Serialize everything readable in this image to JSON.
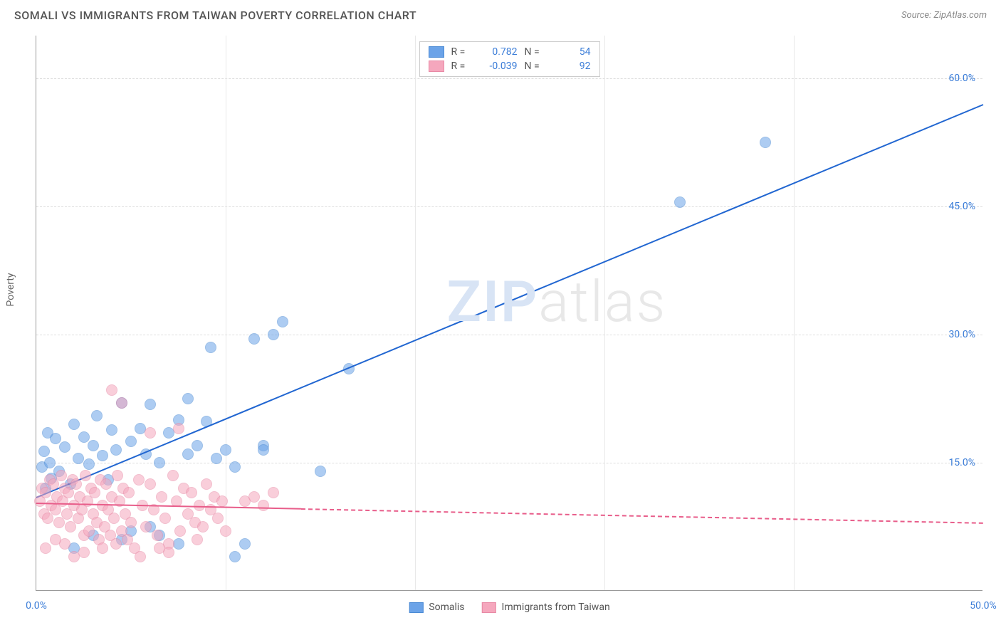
{
  "title": "SOMALI VS IMMIGRANTS FROM TAIWAN POVERTY CORRELATION CHART",
  "source_label": "Source:",
  "source_name": "ZipAtlas.com",
  "watermark_part1": "ZIP",
  "watermark_part2": "atlas",
  "y_axis_label": "Poverty",
  "chart": {
    "type": "scatter",
    "background_color": "#ffffff",
    "grid_color": "#dddddd",
    "axis_color": "#999999",
    "tick_label_color": "#3b7dd8",
    "tick_label_fontsize": 14,
    "title_fontsize": 16,
    "title_color": "#555555",
    "xlim": [
      0,
      50
    ],
    "ylim": [
      0,
      65
    ],
    "x_ticks": [
      0,
      50
    ],
    "x_tick_labels": [
      "0.0%",
      "50.0%"
    ],
    "y_ticks": [
      15,
      30,
      45,
      60
    ],
    "y_tick_labels": [
      "15.0%",
      "30.0%",
      "45.0%",
      "60.0%"
    ],
    "v_grid_positions": [
      10,
      20,
      30,
      40
    ],
    "marker_radius": 8,
    "marker_opacity": 0.55,
    "series": [
      {
        "name": "Somalis",
        "color": "#6ba3e8",
        "border_color": "#4a8ad4",
        "trend_color": "#2166d1",
        "r_value": "0.782",
        "n_value": "54",
        "trend": {
          "x1": 0,
          "y1": 11,
          "x2": 50,
          "y2": 57,
          "solid_until_x": 50
        },
        "points": [
          [
            0.3,
            14.5
          ],
          [
            0.4,
            16.3
          ],
          [
            0.5,
            12.0
          ],
          [
            0.6,
            18.5
          ],
          [
            0.7,
            15.0
          ],
          [
            0.8,
            13.2
          ],
          [
            1.0,
            17.8
          ],
          [
            1.2,
            14.0
          ],
          [
            1.5,
            16.8
          ],
          [
            1.8,
            12.5
          ],
          [
            2.0,
            19.5
          ],
          [
            2.2,
            15.5
          ],
          [
            2.5,
            18.0
          ],
          [
            2.8,
            14.8
          ],
          [
            3.0,
            17.0
          ],
          [
            3.2,
            20.5
          ],
          [
            3.5,
            15.8
          ],
          [
            3.8,
            13.0
          ],
          [
            4.0,
            18.8
          ],
          [
            4.2,
            16.5
          ],
          [
            4.5,
            22.0
          ],
          [
            5.0,
            17.5
          ],
          [
            5.5,
            19.0
          ],
          [
            5.8,
            16.0
          ],
          [
            6.0,
            21.8
          ],
          [
            6.5,
            15.0
          ],
          [
            7.0,
            18.5
          ],
          [
            7.5,
            20.0
          ],
          [
            8.0,
            22.5
          ],
          [
            8.5,
            17.0
          ],
          [
            9.0,
            19.8
          ],
          [
            9.2,
            28.5
          ],
          [
            5.0,
            7.0
          ],
          [
            6.5,
            6.5
          ],
          [
            10.5,
            4.0
          ],
          [
            10.0,
            16.5
          ],
          [
            10.5,
            14.5
          ],
          [
            11.0,
            5.5
          ],
          [
            11.5,
            29.5
          ],
          [
            12.0,
            17.0
          ],
          [
            12.5,
            30.0
          ],
          [
            13.0,
            31.5
          ],
          [
            15.0,
            14.0
          ],
          [
            16.5,
            26.0
          ],
          [
            12.0,
            16.5
          ],
          [
            4.5,
            6.0
          ],
          [
            7.5,
            5.5
          ],
          [
            34.0,
            45.5
          ],
          [
            38.5,
            52.5
          ],
          [
            8.0,
            16.0
          ],
          [
            9.5,
            15.5
          ],
          [
            3.0,
            6.5
          ],
          [
            6.0,
            7.5
          ],
          [
            2.0,
            5.0
          ]
        ]
      },
      {
        "name": "Immigrants from Taiwan",
        "color": "#f5a7bd",
        "border_color": "#e889a5",
        "trend_color": "#e85d8a",
        "r_value": "-0.039",
        "n_value": "92",
        "trend": {
          "x1": 0,
          "y1": 10.3,
          "x2": 50,
          "y2": 8.0,
          "solid_until_x": 14
        },
        "points": [
          [
            0.2,
            10.5
          ],
          [
            0.3,
            12.0
          ],
          [
            0.4,
            9.0
          ],
          [
            0.5,
            11.5
          ],
          [
            0.6,
            8.5
          ],
          [
            0.7,
            13.0
          ],
          [
            0.8,
            10.0
          ],
          [
            0.9,
            12.5
          ],
          [
            1.0,
            9.5
          ],
          [
            1.1,
            11.0
          ],
          [
            1.2,
            8.0
          ],
          [
            1.3,
            13.5
          ],
          [
            1.4,
            10.5
          ],
          [
            1.5,
            12.0
          ],
          [
            1.6,
            9.0
          ],
          [
            1.7,
            11.5
          ],
          [
            1.8,
            7.5
          ],
          [
            1.9,
            13.0
          ],
          [
            2.0,
            10.0
          ],
          [
            2.1,
            12.5
          ],
          [
            2.2,
            8.5
          ],
          [
            2.3,
            11.0
          ],
          [
            2.4,
            9.5
          ],
          [
            2.5,
            6.5
          ],
          [
            2.6,
            13.5
          ],
          [
            2.7,
            10.5
          ],
          [
            2.8,
            7.0
          ],
          [
            2.9,
            12.0
          ],
          [
            3.0,
            9.0
          ],
          [
            3.1,
            11.5
          ],
          [
            3.2,
            8.0
          ],
          [
            3.3,
            6.0
          ],
          [
            3.4,
            13.0
          ],
          [
            3.5,
            10.0
          ],
          [
            3.6,
            7.5
          ],
          [
            3.7,
            12.5
          ],
          [
            3.8,
            9.5
          ],
          [
            3.9,
            6.5
          ],
          [
            4.0,
            11.0
          ],
          [
            4.1,
            8.5
          ],
          [
            4.2,
            5.5
          ],
          [
            4.3,
            13.5
          ],
          [
            4.4,
            10.5
          ],
          [
            4.5,
            7.0
          ],
          [
            4.6,
            12.0
          ],
          [
            4.7,
            9.0
          ],
          [
            4.8,
            6.0
          ],
          [
            4.9,
            11.5
          ],
          [
            5.0,
            8.0
          ],
          [
            5.2,
            5.0
          ],
          [
            5.4,
            13.0
          ],
          [
            5.6,
            10.0
          ],
          [
            5.8,
            7.5
          ],
          [
            6.0,
            12.5
          ],
          [
            6.2,
            9.5
          ],
          [
            6.4,
            6.5
          ],
          [
            6.6,
            11.0
          ],
          [
            6.8,
            8.5
          ],
          [
            7.0,
            5.5
          ],
          [
            7.2,
            13.5
          ],
          [
            7.4,
            10.5
          ],
          [
            7.6,
            7.0
          ],
          [
            7.8,
            12.0
          ],
          [
            8.0,
            9.0
          ],
          [
            8.2,
            11.5
          ],
          [
            8.4,
            8.0
          ],
          [
            8.6,
            10.0
          ],
          [
            8.8,
            7.5
          ],
          [
            9.0,
            12.5
          ],
          [
            9.2,
            9.5
          ],
          [
            9.4,
            11.0
          ],
          [
            9.6,
            8.5
          ],
          [
            9.8,
            10.5
          ],
          [
            10.0,
            7.0
          ],
          [
            4.0,
            23.5
          ],
          [
            4.5,
            22.0
          ],
          [
            7.5,
            19.0
          ],
          [
            6.0,
            18.5
          ],
          [
            2.5,
            4.5
          ],
          [
            3.5,
            5.0
          ],
          [
            5.5,
            4.0
          ],
          [
            7.0,
            4.5
          ],
          [
            1.5,
            5.5
          ],
          [
            2.0,
            4.0
          ],
          [
            11.0,
            10.5
          ],
          [
            11.5,
            11.0
          ],
          [
            12.0,
            10.0
          ],
          [
            12.5,
            11.5
          ],
          [
            0.5,
            5.0
          ],
          [
            1.0,
            6.0
          ],
          [
            6.5,
            5.0
          ],
          [
            8.5,
            6.0
          ]
        ]
      }
    ]
  },
  "stat_legend": {
    "r_label": "R =",
    "n_label": "N ="
  }
}
